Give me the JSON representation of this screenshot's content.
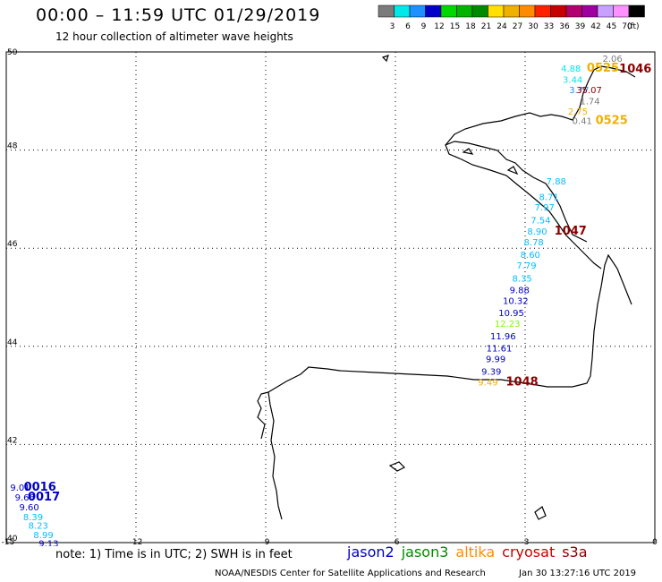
{
  "header": {
    "title": "00:00 – 11:59 UTC 01/29/2019",
    "subtitle": "12 hour collection of altimeter wave heights"
  },
  "legend": {
    "unit": "(ft)",
    "bins": [
      {
        "label": "3",
        "color": "#7b7b7b"
      },
      {
        "label": "6",
        "color": "#00e8e8"
      },
      {
        "label": "9",
        "color": "#1e90ff"
      },
      {
        "label": "12",
        "color": "#0000c8"
      },
      {
        "label": "15",
        "color": "#00d800"
      },
      {
        "label": "18",
        "color": "#00b400"
      },
      {
        "label": "21",
        "color": "#008a00"
      },
      {
        "label": "24",
        "color": "#ffe000"
      },
      {
        "label": "27",
        "color": "#f0b000"
      },
      {
        "label": "30",
        "color": "#ff8c00"
      },
      {
        "label": "33",
        "color": "#ff2000"
      },
      {
        "label": "36",
        "color": "#c80000"
      },
      {
        "label": "39",
        "color": "#b4006e"
      },
      {
        "label": "42",
        "color": "#a000a0"
      },
      {
        "label": "45",
        "color": "#c8a0ff"
      },
      {
        "label": "70",
        "color": "#ff90ff"
      },
      {
        "label": "",
        "color": "#000000"
      }
    ]
  },
  "axes": {
    "lon_labels": [
      "-15",
      "-12",
      "-9",
      "-6",
      "-3",
      "0"
    ],
    "lat_labels": [
      "50",
      "48",
      "46",
      "44",
      "42",
      "40"
    ]
  },
  "observations": [
    {
      "text": "2.06",
      "lon": -0.98,
      "lat": 49.8,
      "color": "#7b7b7b"
    },
    {
      "text": "4.88",
      "lon": -1.94,
      "lat": 49.6,
      "color": "#00e8e8"
    },
    {
      "text": "0525",
      "lon": -1.2,
      "lat": 49.6,
      "color": "#f0b000",
      "kind": "time"
    },
    {
      "text": "1046",
      "lon": -0.45,
      "lat": 49.58,
      "color": "#8b0000",
      "kind": "time"
    },
    {
      "text": "3.44",
      "lon": -1.9,
      "lat": 49.37,
      "color": "#00e8e8"
    },
    {
      "text": "3.77",
      "lon": -1.75,
      "lat": 49.16,
      "color": "#1e90ff"
    },
    {
      "text": "35.07",
      "lon": -1.52,
      "lat": 49.16,
      "color": "#8b0000"
    },
    {
      "text": "1.74",
      "lon": -1.5,
      "lat": 48.93,
      "color": "#7b7b7b"
    },
    {
      "text": "2.75",
      "lon": -1.78,
      "lat": 48.72,
      "color": "#f0b000"
    },
    {
      "text": "0.41",
      "lon": -1.68,
      "lat": 48.53,
      "color": "#7b7b7b"
    },
    {
      "text": "0525",
      "lon": -1.0,
      "lat": 48.53,
      "color": "#f0b000",
      "kind": "time"
    },
    {
      "text": "7.88",
      "lon": -2.28,
      "lat": 47.3,
      "color": "#00bfff"
    },
    {
      "text": "8.71",
      "lon": -2.45,
      "lat": 46.98,
      "color": "#00bfff"
    },
    {
      "text": "7.97",
      "lon": -2.55,
      "lat": 46.77,
      "color": "#00bfff"
    },
    {
      "text": "7.54",
      "lon": -2.64,
      "lat": 46.51,
      "color": "#00bfff"
    },
    {
      "text": "8.90",
      "lon": -2.72,
      "lat": 46.28,
      "color": "#00bfff"
    },
    {
      "text": "1047",
      "lon": -1.95,
      "lat": 46.28,
      "color": "#8b0000",
      "kind": "time"
    },
    {
      "text": "8.78",
      "lon": -2.8,
      "lat": 46.06,
      "color": "#00bfff"
    },
    {
      "text": "8.60",
      "lon": -2.88,
      "lat": 45.8,
      "color": "#00bfff"
    },
    {
      "text": "7.79",
      "lon": -2.97,
      "lat": 45.58,
      "color": "#00bfff"
    },
    {
      "text": "8.35",
      "lon": -3.07,
      "lat": 45.32,
      "color": "#00bfff"
    },
    {
      "text": "9.88",
      "lon": -3.13,
      "lat": 45.08,
      "color": "#0000c8"
    },
    {
      "text": "10.32",
      "lon": -3.22,
      "lat": 44.86,
      "color": "#0000c8"
    },
    {
      "text": "10.95",
      "lon": -3.32,
      "lat": 44.62,
      "color": "#0000c8"
    },
    {
      "text": "12.23",
      "lon": -3.41,
      "lat": 44.4,
      "color": "#7cfc00"
    },
    {
      "text": "11.96",
      "lon": -3.51,
      "lat": 44.14,
      "color": "#0000c8"
    },
    {
      "text": "11.61",
      "lon": -3.6,
      "lat": 43.9,
      "color": "#0000c8"
    },
    {
      "text": "9.99",
      "lon": -3.68,
      "lat": 43.68,
      "color": "#0000c8"
    },
    {
      "text": "9.39",
      "lon": -3.78,
      "lat": 43.42,
      "color": "#0000c8"
    },
    {
      "text": "9.49",
      "lon": -3.86,
      "lat": 43.2,
      "color": "#f0b000"
    },
    {
      "text": "1048",
      "lon": -3.07,
      "lat": 43.2,
      "color": "#8b0000",
      "kind": "time"
    },
    {
      "text": "9.01",
      "lon": -14.68,
      "lat": 41.06,
      "color": "#0000c8"
    },
    {
      "text": "0016",
      "lon": -14.22,
      "lat": 41.06,
      "color": "#0000c8",
      "kind": "time"
    },
    {
      "text": "9.66",
      "lon": -14.57,
      "lat": 40.86,
      "color": "#0000c8"
    },
    {
      "text": "0017",
      "lon": -14.13,
      "lat": 40.86,
      "color": "#0000c8",
      "kind": "time"
    },
    {
      "text": "9.60",
      "lon": -14.47,
      "lat": 40.66,
      "color": "#0000c8"
    },
    {
      "text": "8.39",
      "lon": -14.38,
      "lat": 40.46,
      "color": "#00bfff"
    },
    {
      "text": "8.23",
      "lon": -14.26,
      "lat": 40.28,
      "color": "#00bfff"
    },
    {
      "text": "8.99",
      "lon": -14.14,
      "lat": 40.09,
      "color": "#00bfff"
    },
    {
      "text": "9.13",
      "lon": -14.02,
      "lat": 39.92,
      "color": "#0000c8"
    }
  ],
  "footer": {
    "note": "note: 1) Time is in UTC; 2) SWH is in feet",
    "missions": [
      {
        "name": "jason2",
        "color": "#0000c8"
      },
      {
        "name": "jason3",
        "color": "#008a00"
      },
      {
        "name": "altika",
        "color": "#ff8c00"
      },
      {
        "name": "cryosat",
        "color": "#c80000"
      },
      {
        "name": "s3a",
        "color": "#8b0000"
      }
    ],
    "credit_left": "NOAA/NESDIS Center for Satellite Applications and Research",
    "credit_right": "Jan 30 13:27:16 UTC 2019"
  }
}
